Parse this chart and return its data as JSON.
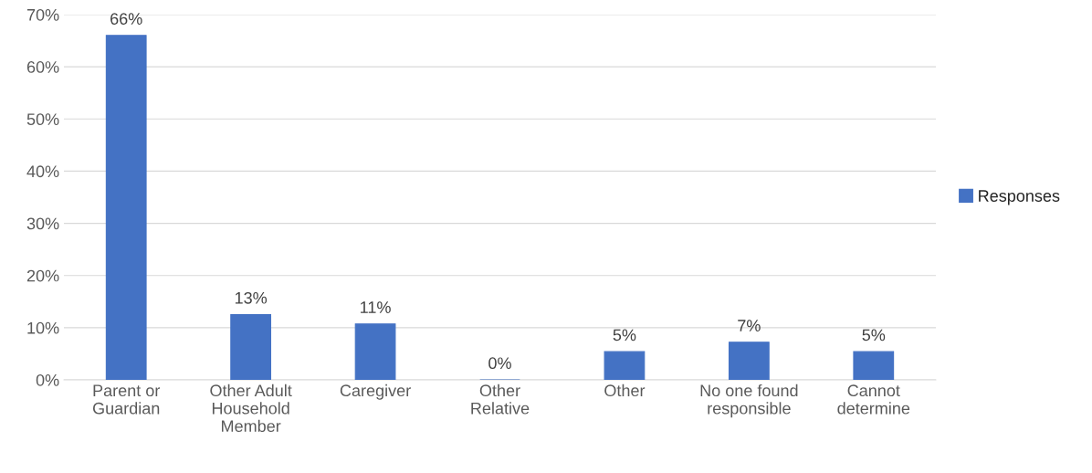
{
  "chart_data": {
    "type": "bar",
    "categories": [
      "Parent or\nGuardian",
      "Other Adult\nHousehold\nMember",
      "Caregiver",
      "Other\nRelative",
      "Other",
      "No one found\nresponsible",
      "Cannot\ndetermine"
    ],
    "series": [
      {
        "name": "Responses",
        "color": "#4472c4",
        "values": [
          66,
          12.5,
          10.7,
          0,
          5.4,
          7.2,
          5.4
        ],
        "value_labels": [
          "66%",
          "13%",
          "11%",
          "0%",
          "5%",
          "7%",
          "5%"
        ]
      }
    ],
    "ylim": [
      0,
      70
    ],
    "yticks": [
      {
        "value": 0,
        "label": "0%"
      },
      {
        "value": 10,
        "label": "10%"
      },
      {
        "value": 20,
        "label": "20%"
      },
      {
        "value": 30,
        "label": "30%"
      },
      {
        "value": 40,
        "label": "40%"
      },
      {
        "value": 50,
        "label": "50%"
      },
      {
        "value": 60,
        "label": "60%"
      },
      {
        "value": 70,
        "label": "70%"
      }
    ],
    "grid": "y",
    "legend": "right"
  }
}
